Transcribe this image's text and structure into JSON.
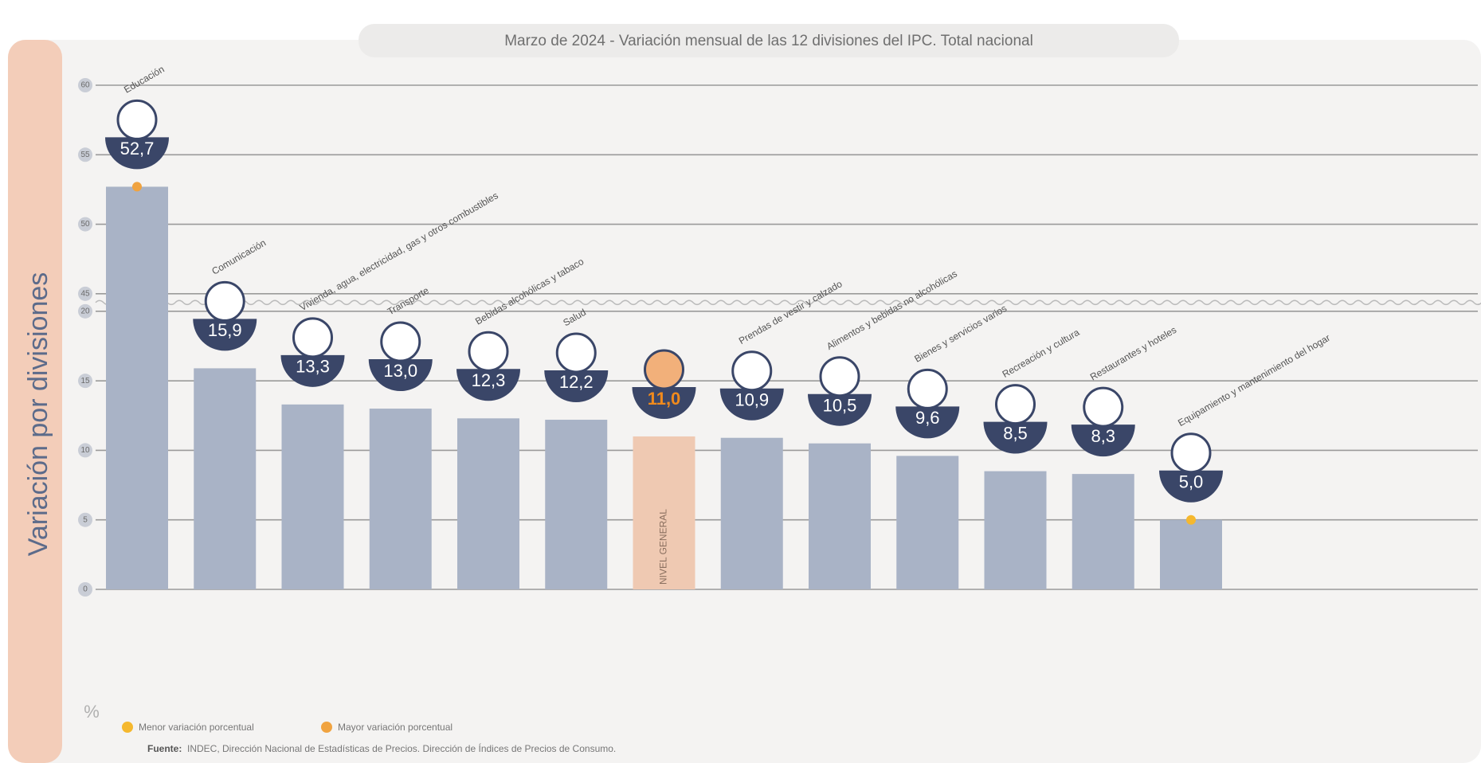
{
  "chart_data": {
    "type": "bar",
    "title": "Marzo de 2024 - Variación mensual de las 12 divisiones del IPC. Total nacional",
    "ylabel": "Variación por divisiones",
    "unit_label": "%",
    "categories": [
      "Educación",
      "Comunicación",
      "Vivienda, agua, electricidad, gas y otros combustibles",
      "Transporte",
      "Bebidas alcohólicas y tabaco",
      "Salud",
      "NIVEL GENERAL",
      "Prendas de vestir y calzado",
      "Alimentos y bebidas no alcohólicas",
      "Bienes y servicios varios",
      "Recreación y cultura",
      "Restaurantes y hoteles",
      "Equipamiento y mantenimiento del hogar"
    ],
    "values": [
      52.7,
      15.9,
      13.3,
      13.0,
      12.3,
      12.2,
      11.0,
      10.9,
      10.5,
      9.6,
      8.5,
      8.3,
      5.0
    ],
    "value_labels": [
      "52,7",
      "15,9",
      "13,3",
      "13,0",
      "12,3",
      "12,2",
      "11,0",
      "10,9",
      "10,5",
      "9,6",
      "8,5",
      "8,3",
      "5,0"
    ],
    "colors": [
      "#a9b3c6",
      "#a9b3c6",
      "#a9b3c6",
      "#a9b3c6",
      "#a9b3c6",
      "#a9b3c6",
      "#efc9b2",
      "#a9b3c6",
      "#a9b3c6",
      "#a9b3c6",
      "#a9b3c6",
      "#a9b3c6",
      "#a9b3c6"
    ],
    "ylim": [
      0,
      60
    ],
    "y_break": [
      20,
      45
    ],
    "yticks": [
      0,
      5,
      10,
      15,
      20,
      45,
      50,
      55,
      60
    ],
    "grid": true,
    "legend": [
      {
        "name": "Menor variación porcentual",
        "color": "#f5b82e"
      },
      {
        "name": "Mayor variación porcentual",
        "color": "#f0a340"
      }
    ],
    "source_label": "Fuente:",
    "source": "INDEC, Dirección Nacional de Estadísticas de Precios. Dirección de Índices de Precios de Consumo."
  }
}
